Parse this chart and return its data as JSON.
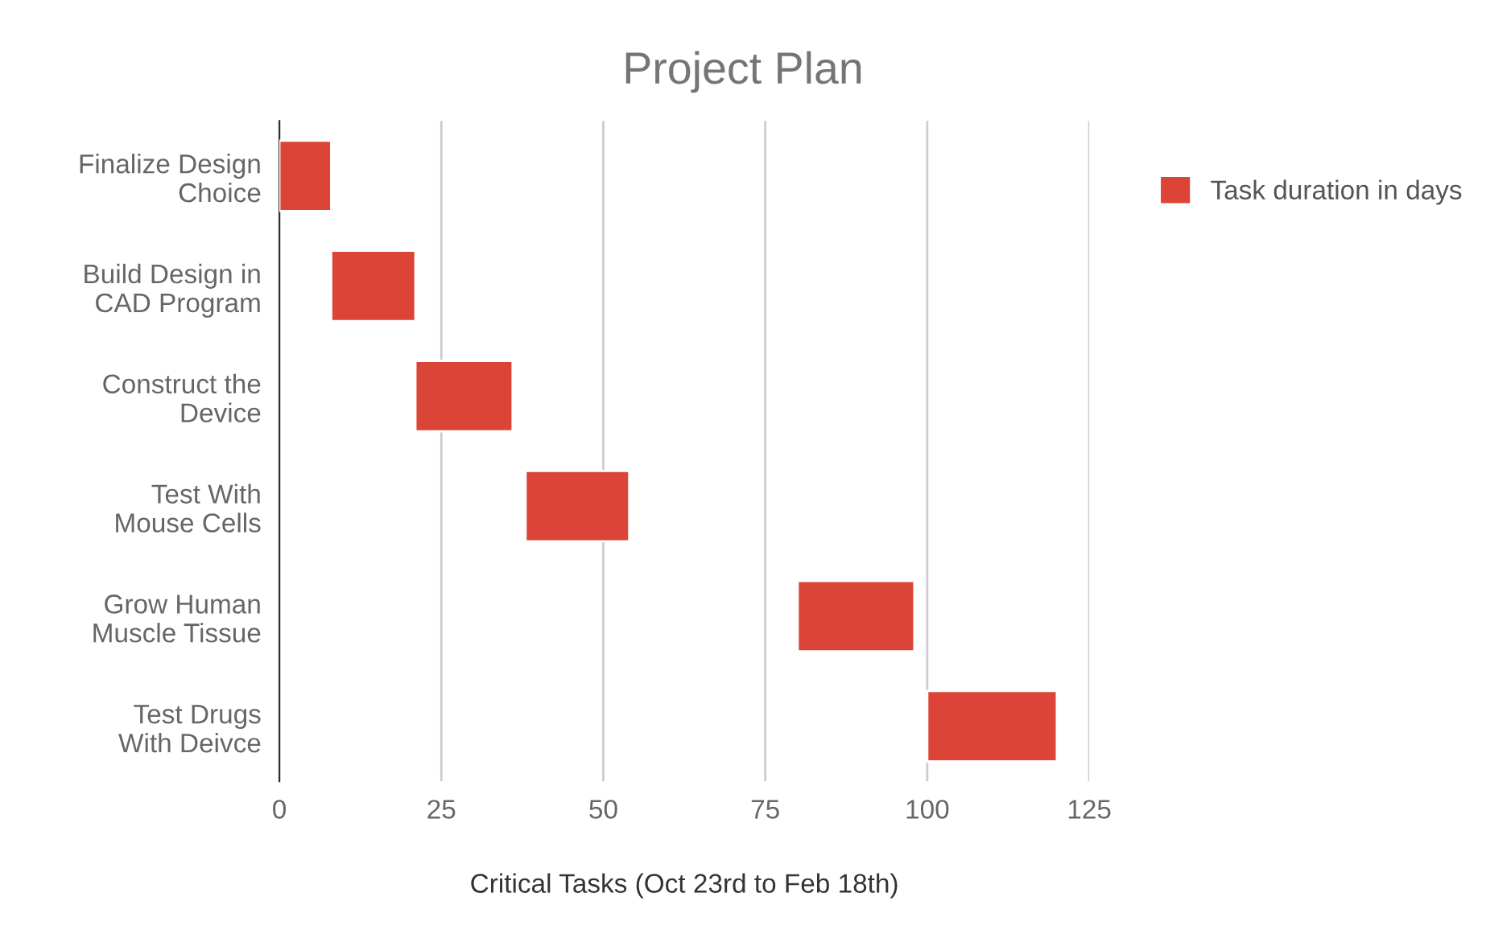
{
  "chart_data": {
    "type": "bar",
    "orientation": "horizontal",
    "title": "Project Plan",
    "xlabel": "Critical Tasks (Oct 23rd to Feb 18th)",
    "categories": [
      "Finalize Design\nChoice",
      "Build Design in\nCAD Program",
      "Construct the\nDevice",
      "Test With\nMouse Cells",
      "Grow Human\nMuscle Tissue",
      "Test Drugs\nWith Deivce"
    ],
    "series": [
      {
        "name": "Task duration in days",
        "color": "#db4437",
        "base": [
          0,
          8,
          21,
          38,
          80,
          100
        ],
        "values": [
          8,
          13,
          15,
          16,
          18,
          20
        ]
      }
    ],
    "xlim": [
      0,
      125
    ],
    "xticks": [
      0,
      25,
      50,
      75,
      100,
      125
    ],
    "grid": "x",
    "legend": "right"
  }
}
